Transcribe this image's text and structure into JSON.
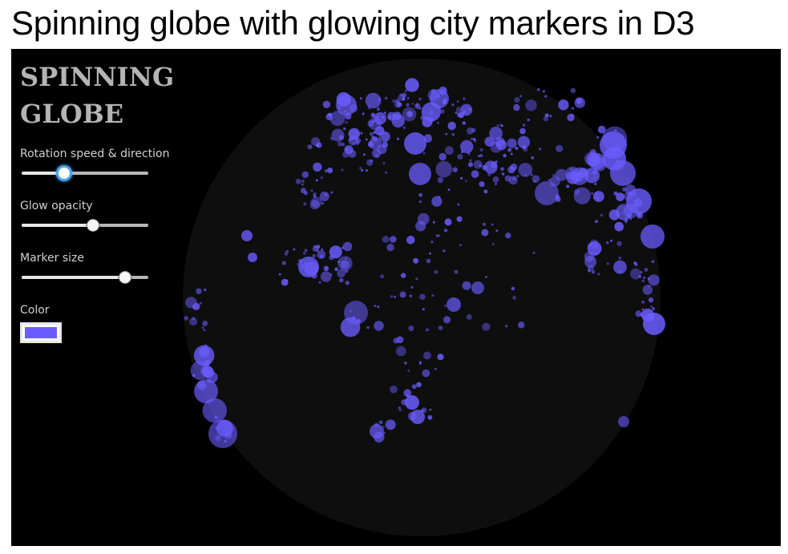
{
  "page": {
    "heading": "Spinning globe with glowing city markers in D3"
  },
  "panel": {
    "title": "SPINNING GLOBE",
    "controls": {
      "rotation": {
        "label": "Rotation speed & direction",
        "value": 0.33
      },
      "glow": {
        "label": "Glow opacity",
        "value": 0.56
      },
      "marker": {
        "label": "Marker size",
        "value": 0.81
      },
      "color": {
        "label": "Color",
        "value": "#6b5cff"
      }
    }
  },
  "colors": {
    "background": "#000000",
    "globe_fill": "#0e0e0e",
    "marker": "#6b5cff",
    "panel_text": "#d0d0d0",
    "title_text": "#b4b4b4"
  }
}
